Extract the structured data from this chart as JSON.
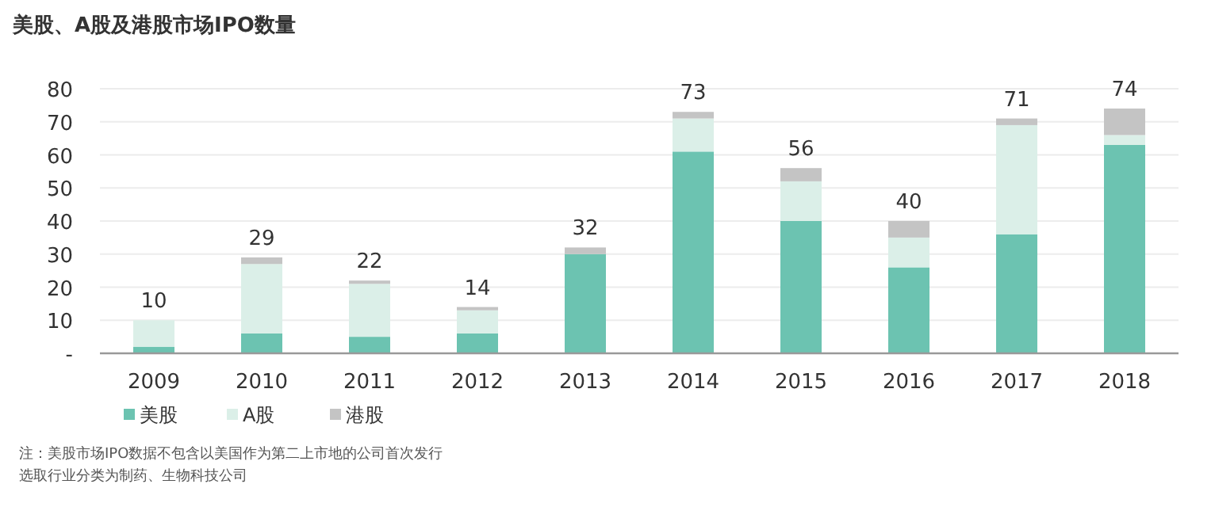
{
  "chart_data": {
    "type": "bar",
    "title": "美股、A股及港股市场IPO数量",
    "stacked": true,
    "categories": [
      "2009",
      "2010",
      "2011",
      "2012",
      "2013",
      "2014",
      "2015",
      "2016",
      "2017",
      "2018"
    ],
    "series": [
      {
        "name": "美股",
        "color": "#6cc3b1",
        "values": [
          2,
          6,
          5,
          6,
          30,
          61,
          40,
          26,
          36,
          63
        ]
      },
      {
        "name": "A股",
        "color": "#dbefe8",
        "values": [
          8,
          21,
          16,
          7,
          0,
          10,
          12,
          9,
          33,
          3
        ]
      },
      {
        "name": "港股",
        "color": "#c4c4c4",
        "values": [
          0,
          2,
          1,
          1,
          2,
          2,
          4,
          5,
          2,
          8
        ]
      }
    ],
    "totals": [
      "10",
      "29",
      "22",
      "14",
      "32",
      "73",
      "56",
      "40",
      "71",
      "74"
    ],
    "ylim": [
      0,
      80
    ],
    "yticks": [
      {
        "value": 0,
        "label": "-"
      },
      10,
      20,
      30,
      40,
      50,
      60,
      70,
      80
    ],
    "grid": "y",
    "legend": "bottom",
    "annotations": [
      "注：美股市场IPO数据不包含以美国作为第二上市地的公司首次发行",
      "选取行业分类为制药、生物科技公司"
    ]
  }
}
